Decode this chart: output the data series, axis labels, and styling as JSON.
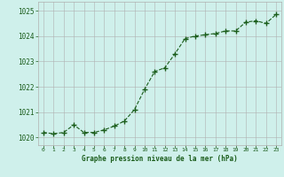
{
  "x": [
    0,
    1,
    2,
    3,
    4,
    5,
    6,
    7,
    8,
    9,
    10,
    11,
    12,
    13,
    14,
    15,
    16,
    17,
    18,
    19,
    20,
    21,
    22,
    23
  ],
  "y": [
    1020.2,
    1020.15,
    1020.2,
    1020.5,
    1020.2,
    1020.2,
    1020.3,
    1020.45,
    1020.65,
    1021.1,
    1021.9,
    1022.6,
    1022.75,
    1023.3,
    1023.9,
    1024.0,
    1024.05,
    1024.1,
    1024.2,
    1024.2,
    1024.55,
    1024.6,
    1024.5,
    1024.85
  ],
  "line_color": "#1a5c1a",
  "marker_color": "#1a5c1a",
  "bg_color": "#cff0eb",
  "grid_color": "#b0b0b0",
  "xlabel": "Graphe pression niveau de la mer (hPa)",
  "xlabel_color": "#1a5c1a",
  "yticks": [
    1020,
    1021,
    1022,
    1023,
    1024,
    1025
  ],
  "xticks": [
    0,
    1,
    2,
    3,
    4,
    5,
    6,
    7,
    8,
    9,
    10,
    11,
    12,
    13,
    14,
    15,
    16,
    17,
    18,
    19,
    20,
    21,
    22,
    23
  ],
  "ylim": [
    1019.7,
    1025.35
  ],
  "xlim": [
    -0.5,
    23.5
  ]
}
